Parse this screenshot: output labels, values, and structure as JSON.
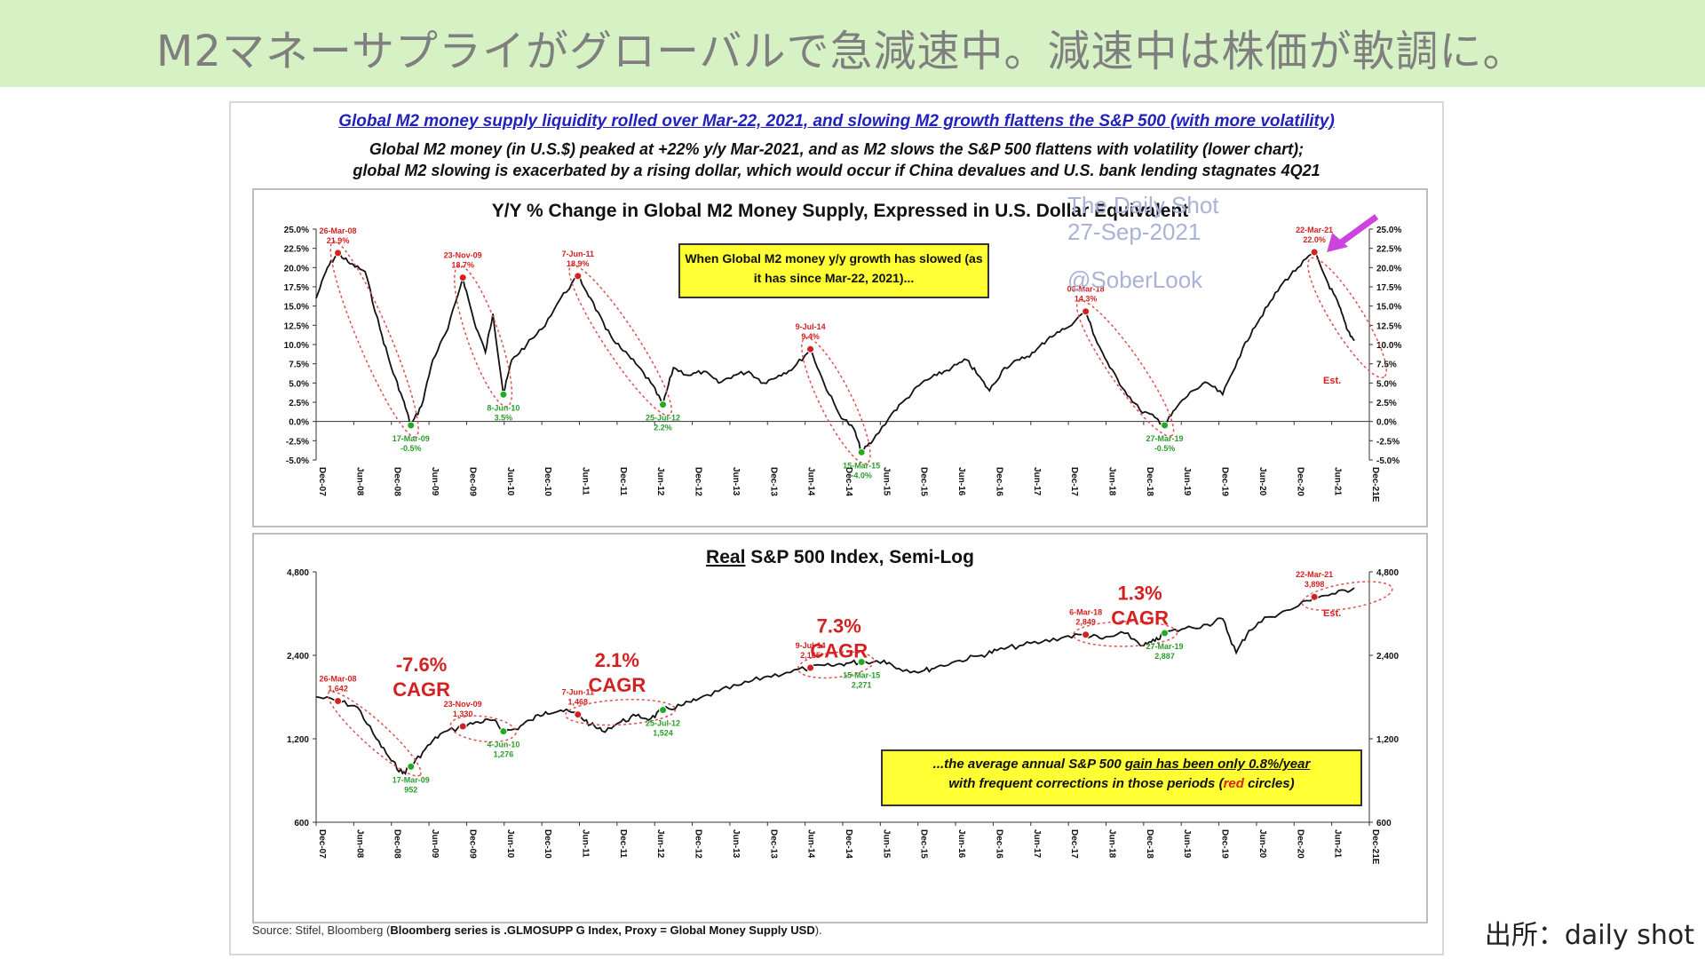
{
  "banner": {
    "title": "M2マネーサプライがグローバルで急減速中。減速中は株価が軟調に。"
  },
  "slide": {
    "headline": "Global M2 money supply liquidity rolled over Mar-22, 2021, and slowing M2 growth flattens the S&P 500 (with more volatility)",
    "subhead_1": "Global M2 money (in U.S.$) peaked at +22% y/y Mar-2021, and as M2 slows the S&P 500 flattens with volatility (lower chart);",
    "subhead_2": "global M2 slowing is exacerbated by a rising dollar, which would occur if China devalues and U.S. bank lending stagnates 4Q21",
    "watermark": {
      "line1": "The Daily Shot",
      "line2": "27-Sep-2021",
      "line3": "@SoberLook"
    },
    "source_prefix": "Source: Stifel, Bloomberg (",
    "source_bold": "Bloomberg series is .GLMOSUPP G Index, Proxy = Global Money Supply USD",
    "source_suffix": ")."
  },
  "colors": {
    "banner": "#d6f2c4",
    "line": "#111111",
    "peak_marker": "#d42020",
    "trough_marker": "#22aa22",
    "annot_red": "#d42020",
    "annot_green": "#2a9d2a",
    "callout": "#ffff33",
    "arrow": "#cc44dd"
  },
  "chart_data": [
    {
      "type": "line",
      "title": "Y/Y % Change in Global M2 Money Supply, Expressed in U.S. Dollar Equivalent",
      "ylim": [
        -5,
        25
      ],
      "y_ticks": [
        "25.0%",
        "22.5%",
        "20.0%",
        "17.5%",
        "15.0%",
        "12.5%",
        "10.0%",
        "7.5%",
        "5.0%",
        "2.5%",
        "0.0%",
        "-2.5%",
        "-5.0%"
      ],
      "x_ticks": [
        "Dec-07",
        "Jun-08",
        "Dec-08",
        "Jun-09",
        "Dec-09",
        "Jun-10",
        "Dec-10",
        "Jun-11",
        "Dec-11",
        "Jun-12",
        "Dec-12",
        "Jun-13",
        "Dec-13",
        "Jun-14",
        "Dec-14",
        "Jun-15",
        "Dec-15",
        "Jun-16",
        "Dec-16",
        "Jun-17",
        "Dec-17",
        "Jun-18",
        "Dec-18",
        "Jun-19",
        "Dec-19",
        "Jun-20",
        "Dec-20",
        "Jun-21",
        "Dec-21E"
      ],
      "callout": "When Global M2 money y/y growth has slowed (as it has since Mar-22, 2021)...",
      "est_label": "Est.",
      "series": [
        {
          "values": [
            [
              2007.95,
              16
            ],
            [
              2008.1,
              20
            ],
            [
              2008.24,
              21.9
            ],
            [
              2008.4,
              20.5
            ],
            [
              2008.6,
              19.5
            ],
            [
              2008.8,
              12
            ],
            [
              2008.95,
              7
            ],
            [
              2009.1,
              3
            ],
            [
              2009.21,
              -0.5
            ],
            [
              2009.35,
              2
            ],
            [
              2009.5,
              8
            ],
            [
              2009.7,
              12
            ],
            [
              2009.9,
              18.7
            ],
            [
              2010.05,
              13
            ],
            [
              2010.2,
              9
            ],
            [
              2010.3,
              14
            ],
            [
              2010.44,
              3.5
            ],
            [
              2010.55,
              8
            ],
            [
              2010.75,
              10
            ],
            [
              2010.95,
              12
            ],
            [
              2011.2,
              16
            ],
            [
              2011.43,
              18.9
            ],
            [
              2011.6,
              16
            ],
            [
              2011.8,
              12
            ],
            [
              2012.0,
              9.5
            ],
            [
              2012.2,
              7.5
            ],
            [
              2012.4,
              5
            ],
            [
              2012.56,
              2.2
            ],
            [
              2012.7,
              7
            ],
            [
              2012.9,
              6
            ],
            [
              2013.1,
              6.5
            ],
            [
              2013.3,
              5
            ],
            [
              2013.5,
              6
            ],
            [
              2013.7,
              6.5
            ],
            [
              2013.9,
              5
            ],
            [
              2014.1,
              6
            ],
            [
              2014.3,
              7
            ],
            [
              2014.52,
              9.4
            ],
            [
              2014.7,
              5
            ],
            [
              2014.9,
              1
            ],
            [
              2015.1,
              -1
            ],
            [
              2015.2,
              -4.0
            ],
            [
              2015.35,
              -2.5
            ],
            [
              2015.6,
              1
            ],
            [
              2015.8,
              3
            ],
            [
              2016.0,
              5
            ],
            [
              2016.2,
              6
            ],
            [
              2016.4,
              7
            ],
            [
              2016.6,
              8
            ],
            [
              2016.75,
              6
            ],
            [
              2016.9,
              4
            ],
            [
              2017.1,
              7
            ],
            [
              2017.3,
              8
            ],
            [
              2017.5,
              9
            ],
            [
              2017.7,
              11
            ],
            [
              2017.9,
              12
            ],
            [
              2018.18,
              14.3
            ],
            [
              2018.3,
              11
            ],
            [
              2018.5,
              7
            ],
            [
              2018.7,
              4
            ],
            [
              2018.9,
              1.5
            ],
            [
              2019.1,
              0.5
            ],
            [
              2019.23,
              -0.5
            ],
            [
              2019.4,
              2
            ],
            [
              2019.6,
              4
            ],
            [
              2019.8,
              5
            ],
            [
              2020.0,
              3.5
            ],
            [
              2020.2,
              8
            ],
            [
              2020.4,
              12
            ],
            [
              2020.6,
              15
            ],
            [
              2020.8,
              18
            ],
            [
              2021.0,
              20
            ],
            [
              2021.22,
              22.0
            ],
            [
              2021.4,
              18
            ],
            [
              2021.55,
              15
            ],
            [
              2021.65,
              12
            ],
            [
              2021.75,
              10.5
            ]
          ]
        }
      ],
      "annotations": [
        {
          "date": "26-Mar-08",
          "value": "21.9%",
          "kind": "peak",
          "x": 2008.24,
          "y": 21.9
        },
        {
          "date": "17-Mar-09",
          "value": "-0.5%",
          "kind": "trough",
          "x": 2009.21,
          "y": -0.5
        },
        {
          "date": "23-Nov-09",
          "value": "18.7%",
          "kind": "peak",
          "x": 2009.9,
          "y": 18.7
        },
        {
          "date": "8-Jun-10",
          "value": "3.5%",
          "kind": "trough",
          "x": 2010.44,
          "y": 3.5
        },
        {
          "date": "7-Jun-11",
          "value": "18.9%",
          "kind": "peak",
          "x": 2011.43,
          "y": 18.9
        },
        {
          "date": "25-Jul-12",
          "value": "2.2%",
          "kind": "trough",
          "x": 2012.56,
          "y": 2.2
        },
        {
          "date": "9-Jul-14",
          "value": "9.4%",
          "kind": "peak",
          "x": 2014.52,
          "y": 9.4
        },
        {
          "date": "15-Mar-15",
          "value": "-4.0%",
          "kind": "trough",
          "x": 2015.2,
          "y": -4.0
        },
        {
          "date": "06-Mar-18",
          "value": "14.3%",
          "kind": "peak",
          "x": 2018.18,
          "y": 14.3
        },
        {
          "date": "27-Mar-19",
          "value": "-0.5%",
          "kind": "trough",
          "x": 2019.23,
          "y": -0.5
        },
        {
          "date": "22-Mar-21",
          "value": "22.0%",
          "kind": "peak",
          "x": 2021.22,
          "y": 22.0
        }
      ]
    },
    {
      "type": "line",
      "title_underlined": "Real",
      "title": "S&P 500 Index, Semi-Log",
      "log_scale": true,
      "ylim": [
        600,
        4800
      ],
      "y_ticks": [
        "4,800",
        "2,400",
        "1,200",
        "600"
      ],
      "y_tick_values": [
        4800,
        2400,
        1200,
        600
      ],
      "x_ticks": [
        "Dec-07",
        "Jun-08",
        "Dec-08",
        "Jun-09",
        "Dec-09",
        "Jun-10",
        "Dec-10",
        "Jun-11",
        "Dec-11",
        "Jun-12",
        "Dec-12",
        "Jun-13",
        "Dec-13",
        "Jun-14",
        "Dec-14",
        "Jun-15",
        "Dec-15",
        "Jun-16",
        "Dec-16",
        "Jun-17",
        "Dec-17",
        "Jun-18",
        "Dec-18",
        "Jun-19",
        "Dec-19",
        "Jun-20",
        "Dec-20",
        "Jun-21",
        "Dec-21E"
      ],
      "callout_part1": "...the average annual S&P 500 ",
      "callout_part2": "gain has been only 0.8%/year",
      "callout_part3": "with frequent corrections in those periods (",
      "callout_red": "red",
      "callout_part4": " circles)",
      "est_label": "Est.",
      "cagr_labels": [
        {
          "pct": "-7.6%",
          "word": "CAGR",
          "x": 2009.35,
          "y": 2100
        },
        {
          "pct": "2.1%",
          "word": "CAGR",
          "x": 2011.95,
          "y": 2180
        },
        {
          "pct": "7.3%",
          "word": "CAGR",
          "x": 2014.9,
          "y": 2900
        },
        {
          "pct": "1.3%",
          "word": "CAGR",
          "x": 2018.9,
          "y": 3800
        }
      ],
      "series": [
        {
          "values": [
            [
              2007.95,
              1700
            ],
            [
              2008.24,
              1642
            ],
            [
              2008.5,
              1560
            ],
            [
              2008.75,
              1200
            ],
            [
              2008.95,
              1000
            ],
            [
              2009.1,
              900
            ],
            [
              2009.21,
              952
            ],
            [
              2009.4,
              1100
            ],
            [
              2009.6,
              1250
            ],
            [
              2009.9,
              1330
            ],
            [
              2010.1,
              1380
            ],
            [
              2010.3,
              1400
            ],
            [
              2010.44,
              1276
            ],
            [
              2010.6,
              1300
            ],
            [
              2010.8,
              1400
            ],
            [
              2011.0,
              1500
            ],
            [
              2011.2,
              1520
            ],
            [
              2011.43,
              1468
            ],
            [
              2011.6,
              1350
            ],
            [
              2011.75,
              1280
            ],
            [
              2012.0,
              1380
            ],
            [
              2012.2,
              1450
            ],
            [
              2012.4,
              1420
            ],
            [
              2012.56,
              1524
            ],
            [
              2012.8,
              1580
            ],
            [
              2013.0,
              1650
            ],
            [
              2013.3,
              1780
            ],
            [
              2013.6,
              1880
            ],
            [
              2013.9,
              2000
            ],
            [
              2014.2,
              2080
            ],
            [
              2014.52,
              2165
            ],
            [
              2014.8,
              2200
            ],
            [
              2015.0,
              2250
            ],
            [
              2015.2,
              2271
            ],
            [
              2015.5,
              2300
            ],
            [
              2015.7,
              2150
            ],
            [
              2016.0,
              2100
            ],
            [
              2016.2,
              2180
            ],
            [
              2016.5,
              2300
            ],
            [
              2016.8,
              2400
            ],
            [
              2017.0,
              2500
            ],
            [
              2017.3,
              2600
            ],
            [
              2017.6,
              2680
            ],
            [
              2017.9,
              2800
            ],
            [
              2018.18,
              2849
            ],
            [
              2018.4,
              2750
            ],
            [
              2018.7,
              2880
            ],
            [
              2018.95,
              2600
            ],
            [
              2019.1,
              2700
            ],
            [
              2019.23,
              2887
            ],
            [
              2019.5,
              3000
            ],
            [
              2019.8,
              3100
            ],
            [
              2020.0,
              3250
            ],
            [
              2020.18,
              2450
            ],
            [
              2020.35,
              2950
            ],
            [
              2020.6,
              3300
            ],
            [
              2020.9,
              3500
            ],
            [
              2021.22,
              3898
            ],
            [
              2021.5,
              4000
            ],
            [
              2021.75,
              4200
            ]
          ]
        }
      ],
      "annotations": [
        {
          "date": "26-Mar-08",
          "value": "1,642",
          "kind": "peak",
          "x": 2008.24,
          "y": 1642
        },
        {
          "date": "17-Mar-09",
          "value": "952",
          "kind": "trough",
          "x": 2009.21,
          "y": 952
        },
        {
          "date": "23-Nov-09",
          "value": "1,330",
          "kind": "peak",
          "x": 2009.9,
          "y": 1330
        },
        {
          "date": "4-Jun-10",
          "value": "1,276",
          "kind": "trough",
          "x": 2010.44,
          "y": 1276
        },
        {
          "date": "7-Jun-11",
          "value": "1,468",
          "kind": "peak",
          "x": 2011.43,
          "y": 1468
        },
        {
          "date": "25-Jul-12",
          "value": "1,524",
          "kind": "trough",
          "x": 2012.56,
          "y": 1524
        },
        {
          "date": "9-Jul-14",
          "value": "2,165",
          "kind": "peak",
          "x": 2014.52,
          "y": 2165
        },
        {
          "date": "15-Mar-15",
          "value": "2,271",
          "kind": "trough",
          "x": 2015.2,
          "y": 2271
        },
        {
          "date": "6-Mar-18",
          "value": "2,849",
          "kind": "peak",
          "x": 2018.18,
          "y": 2849
        },
        {
          "date": "27-Mar-19",
          "value": "2,887",
          "kind": "trough",
          "x": 2019.23,
          "y": 2887
        },
        {
          "date": "22-Mar-21",
          "value": "3,898",
          "kind": "peak",
          "x": 2021.22,
          "y": 3898
        }
      ]
    }
  ],
  "credit": "出所：daily shot"
}
